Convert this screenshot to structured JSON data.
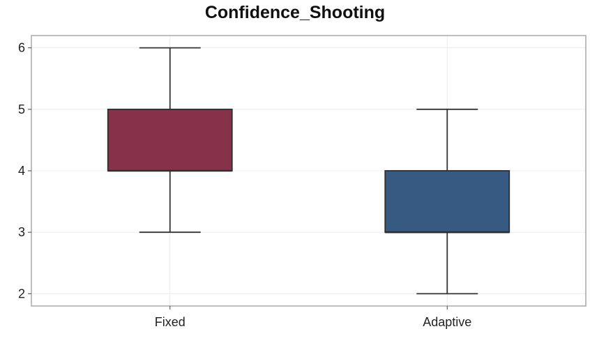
{
  "chart_data": {
    "type": "box",
    "title": "Confidence_Shooting",
    "xlabel": "",
    "ylabel": "",
    "categories": [
      "Fixed",
      "Adaptive"
    ],
    "boxes": [
      {
        "category": "Fixed",
        "min": 3,
        "q1": 4,
        "median": 4,
        "q3": 5,
        "max": 6,
        "color": "#86324b"
      },
      {
        "category": "Adaptive",
        "min": 2,
        "q1": 3,
        "median": 3,
        "q3": 4,
        "max": 5,
        "color": "#375a82"
      }
    ],
    "yticks": [
      2,
      3,
      4,
      5,
      6
    ],
    "ylim": [
      1.8,
      6.2
    ],
    "grid": true,
    "legend": "none"
  }
}
